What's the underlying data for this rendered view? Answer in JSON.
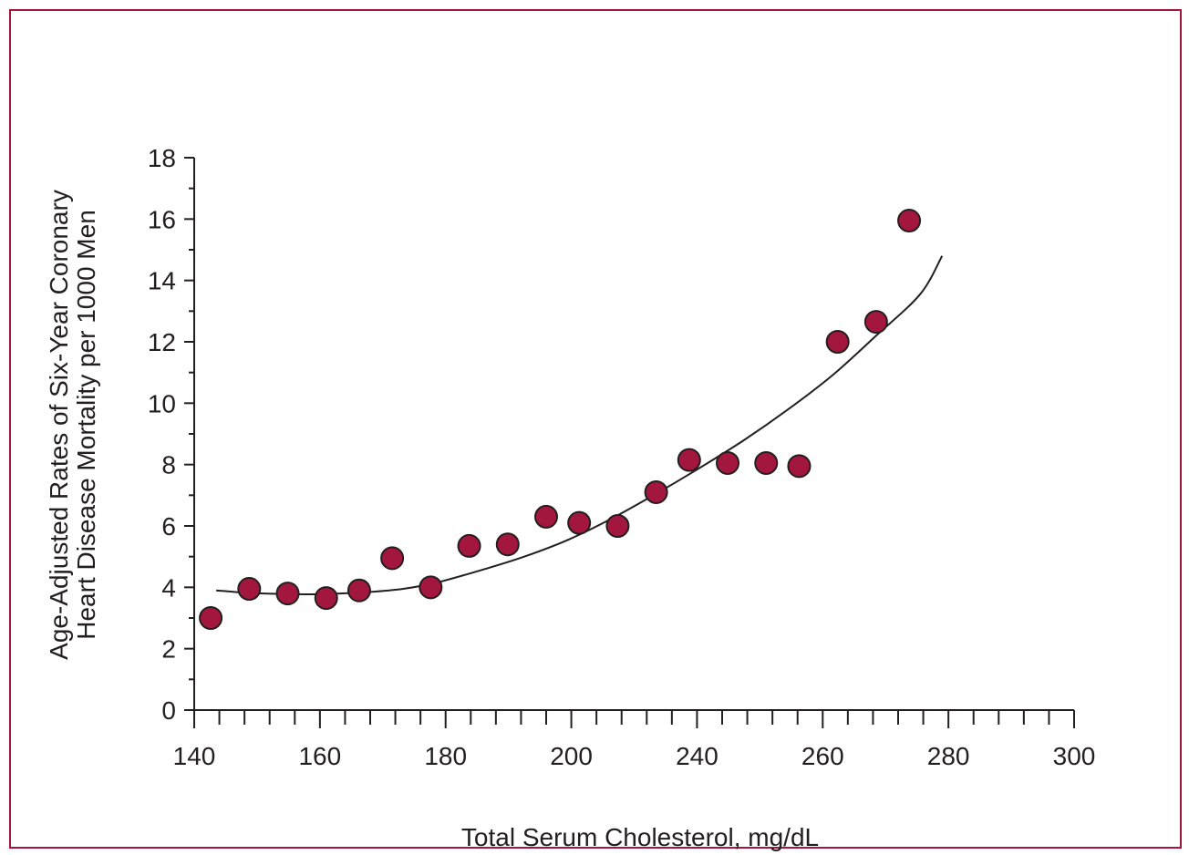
{
  "colors": {
    "frame": "#a3173e",
    "marker_fill": "#a3173e",
    "marker_stroke": "#231f20",
    "axis": "#231f20",
    "curve": "#231f20"
  },
  "chart_data": {
    "type": "scatter",
    "title": "",
    "xlabel": "Total Serum Cholesterol, mg/dL",
    "ylabel_line1": "Age-Adjusted Rates of Six-Year Coronary",
    "ylabel_line2": "Heart Disease Mortality per 1000 Men",
    "xlim": [
      140,
      300
    ],
    "ylim": [
      0,
      18
    ],
    "x_tick_labels": [
      "140",
      "160",
      "180",
      "200",
      "240",
      "260",
      "280",
      "300"
    ],
    "y_tick_labels": [
      "0",
      "2",
      "4",
      "6",
      "8",
      "10",
      "12",
      "14",
      "16",
      "18"
    ],
    "grid": false,
    "legend": "none",
    "series": [
      {
        "points": [
          [
            143,
            3.0
          ],
          [
            150,
            3.95
          ],
          [
            157,
            3.8
          ],
          [
            164,
            3.65
          ],
          [
            170,
            3.9
          ],
          [
            176,
            4.95
          ],
          [
            183,
            4.0
          ],
          [
            190,
            5.35
          ],
          [
            197,
            5.4
          ],
          [
            204,
            6.3
          ],
          [
            210,
            6.1
          ],
          [
            217,
            6.0
          ],
          [
            224,
            7.1
          ],
          [
            230,
            8.15
          ],
          [
            237,
            8.05
          ],
          [
            244,
            8.05
          ],
          [
            250,
            7.95
          ],
          [
            257,
            12.0
          ],
          [
            264,
            12.65
          ],
          [
            270,
            15.95
          ]
        ]
      }
    ],
    "trend_curve": [
      [
        144,
        3.9
      ],
      [
        150,
        3.82
      ],
      [
        157,
        3.78
      ],
      [
        164,
        3.78
      ],
      [
        172,
        3.85
      ],
      [
        178,
        3.95
      ],
      [
        184,
        4.15
      ],
      [
        192,
        4.55
      ],
      [
        200,
        5.0
      ],
      [
        208,
        5.55
      ],
      [
        216,
        6.25
      ],
      [
        224,
        7.05
      ],
      [
        232,
        7.9
      ],
      [
        240,
        8.8
      ],
      [
        248,
        9.8
      ],
      [
        256,
        10.9
      ],
      [
        264,
        12.2
      ],
      [
        272,
        13.55
      ],
      [
        276,
        14.8
      ]
    ]
  }
}
